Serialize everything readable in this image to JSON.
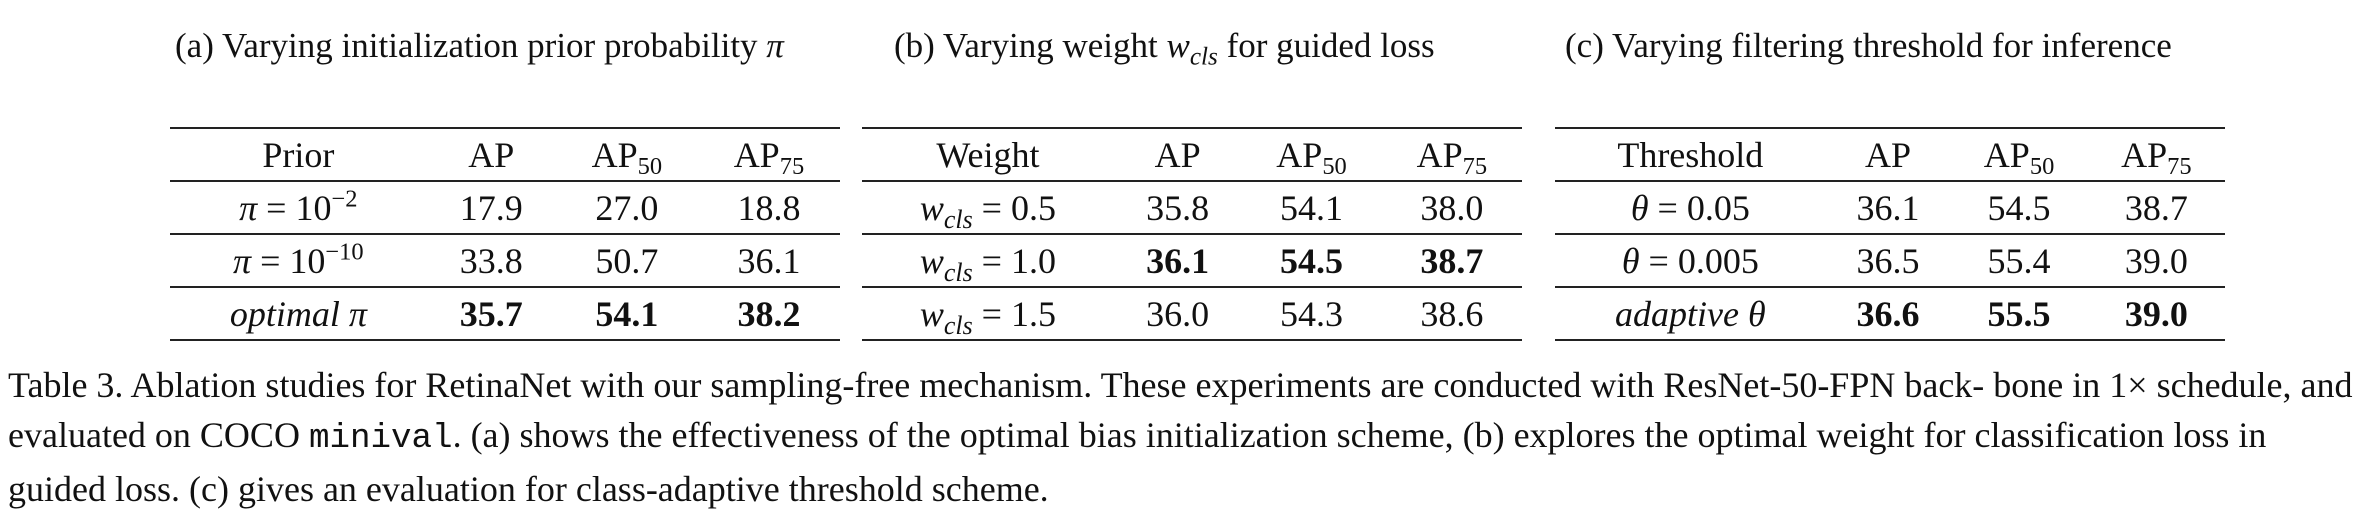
{
  "panels": [
    {
      "id": "a",
      "caption_prefix": "(a)  Varying initialization prior probability ",
      "caption_symbol": "π",
      "caption_suffix": "",
      "headers": [
        "Prior",
        "AP",
        "AP",
        "AP"
      ],
      "header_subs": [
        "",
        "",
        "50",
        "75"
      ],
      "rows": [
        {
          "setting_lhs": "π",
          "setting_op": " = ",
          "setting_base": "10",
          "setting_sup": "−2",
          "values": [
            "17.9",
            "27.0",
            "18.8"
          ],
          "bold": false
        },
        {
          "setting_lhs": "π",
          "setting_op": " = ",
          "setting_base": "10",
          "setting_sup": "−10",
          "values": [
            "33.8",
            "50.7",
            "36.1"
          ],
          "bold": false
        },
        {
          "setting_lhs": "optimal π",
          "setting_op": "",
          "setting_base": "",
          "setting_sup": "",
          "values": [
            "35.7",
            "54.1",
            "38.2"
          ],
          "bold": true
        }
      ]
    },
    {
      "id": "b",
      "caption_prefix": "(b)  Varying weight ",
      "caption_symbol": "w",
      "caption_symbol_sub": "cls",
      "caption_suffix": " for guided loss",
      "headers": [
        "Weight",
        "AP",
        "AP",
        "AP"
      ],
      "header_subs": [
        "",
        "",
        "50",
        "75"
      ],
      "rows": [
        {
          "setting_lhs": "w",
          "setting_lhs_sub": "cls",
          "setting_op": " = ",
          "setting_val": "0.5",
          "values": [
            "35.8",
            "54.1",
            "38.0"
          ],
          "bold": false
        },
        {
          "setting_lhs": "w",
          "setting_lhs_sub": "cls",
          "setting_op": " = ",
          "setting_val": "1.0",
          "values": [
            "36.1",
            "54.5",
            "38.7"
          ],
          "bold": true
        },
        {
          "setting_lhs": "w",
          "setting_lhs_sub": "cls",
          "setting_op": " = ",
          "setting_val": "1.5",
          "values": [
            "36.0",
            "54.3",
            "38.6"
          ],
          "bold": false
        }
      ]
    },
    {
      "id": "c",
      "caption_prefix": "(c)  Varying filtering threshold for inference",
      "caption_symbol": "",
      "caption_suffix": "",
      "headers": [
        "Threshold",
        "AP",
        "AP",
        "AP"
      ],
      "header_subs": [
        "",
        "",
        "50",
        "75"
      ],
      "rows": [
        {
          "setting_lhs": "θ",
          "setting_op": " = ",
          "setting_val": "0.05",
          "values": [
            "36.1",
            "54.5",
            "38.7"
          ],
          "bold": false
        },
        {
          "setting_lhs": "θ",
          "setting_op": " = ",
          "setting_val": "0.005",
          "values": [
            "36.5",
            "55.4",
            "39.0"
          ],
          "bold": false
        },
        {
          "setting_lhs": "adaptive θ",
          "setting_op": "",
          "setting_val": "",
          "values": [
            "36.6",
            "55.5",
            "39.0"
          ],
          "bold": true
        }
      ]
    }
  ],
  "caption": {
    "part1": "Table 3. Ablation studies for RetinaNet with our sampling-free mechanism. These experiments are conducted with ResNet-50-FPN back- bone in 1× schedule, and evaluated on COCO ",
    "code": "minival",
    "part2": ". (a) shows the effectiveness of the optimal bias initialization scheme, (b) explores the optimal weight for classification loss in guided loss. (c) gives an evaluation for class-adaptive threshold scheme."
  }
}
